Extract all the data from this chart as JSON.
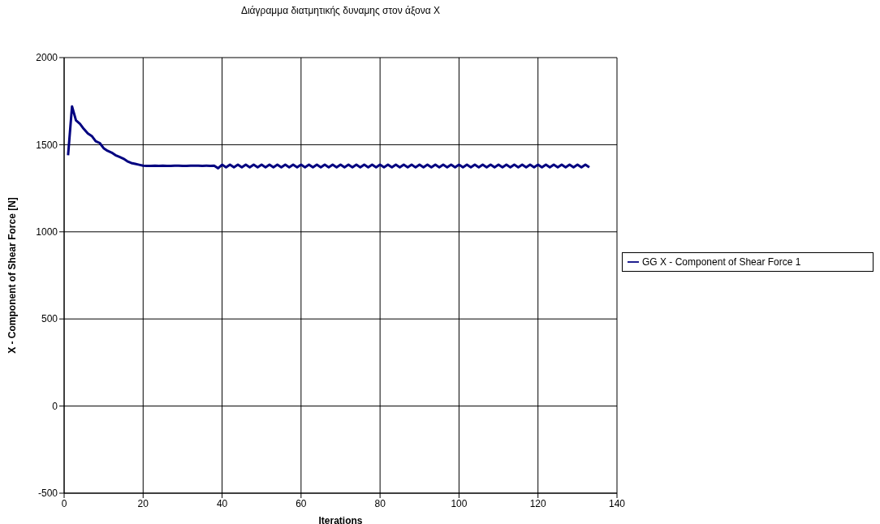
{
  "chart_data": {
    "type": "line",
    "title": "Διάγραμμα διατμητικής δυναμης στον άξονα X",
    "xlabel": "Iterations",
    "ylabel": "X - Component of Shear Force  [N]",
    "xlim": [
      0,
      140
    ],
    "xticks": [
      0,
      20,
      40,
      60,
      80,
      100,
      120,
      140
    ],
    "ylim": [
      -500,
      2000
    ],
    "yticks": [
      -500,
      0,
      500,
      1000,
      1500,
      2000
    ],
    "grid": true,
    "legend": "right",
    "marker": "none",
    "line_style": "solid",
    "x": [
      1,
      2,
      3,
      4,
      5,
      6,
      7,
      8,
      9,
      10,
      11,
      12,
      13,
      14,
      15,
      16,
      17,
      18,
      19,
      20,
      21,
      22,
      23,
      24,
      25,
      26,
      27,
      28,
      29,
      30,
      31,
      32,
      33,
      34,
      35,
      36,
      37,
      38,
      39,
      40,
      41,
      42,
      43,
      44,
      45,
      46,
      47,
      48,
      49,
      50,
      51,
      52,
      53,
      54,
      55,
      56,
      57,
      58,
      59,
      60,
      61,
      62,
      63,
      64,
      65,
      66,
      67,
      68,
      69,
      70,
      71,
      72,
      73,
      74,
      75,
      76,
      77,
      78,
      79,
      80,
      81,
      82,
      83,
      84,
      85,
      86,
      87,
      88,
      89,
      90,
      91,
      92,
      93,
      94,
      95,
      96,
      97,
      98,
      99,
      100,
      101,
      102,
      103,
      104,
      105,
      106,
      107,
      108,
      109,
      110,
      111,
      112,
      113,
      114,
      115,
      116,
      117,
      118,
      119,
      120,
      121,
      122,
      123,
      124,
      125,
      126,
      127,
      128,
      129,
      130,
      131,
      132,
      133
    ],
    "series": [
      {
        "name": "GG X - Component of Shear Force 1",
        "color": "#000080",
        "values": [
          1440,
          1720,
          1640,
          1620,
          1590,
          1565,
          1550,
          1520,
          1510,
          1480,
          1465,
          1455,
          1440,
          1430,
          1420,
          1405,
          1395,
          1390,
          1385,
          1380,
          1378,
          1378,
          1380,
          1378,
          1380,
          1378,
          1378,
          1380,
          1380,
          1378,
          1378,
          1380,
          1380,
          1380,
          1378,
          1380,
          1378,
          1380,
          1365,
          1385,
          1370,
          1385,
          1370,
          1385,
          1370,
          1385,
          1370,
          1385,
          1370,
          1385,
          1370,
          1385,
          1370,
          1385,
          1370,
          1385,
          1370,
          1385,
          1370,
          1385,
          1370,
          1385,
          1370,
          1385,
          1370,
          1385,
          1370,
          1385,
          1370,
          1385,
          1370,
          1385,
          1370,
          1385,
          1370,
          1385,
          1370,
          1385,
          1370,
          1385,
          1370,
          1385,
          1370,
          1385,
          1370,
          1385,
          1370,
          1385,
          1370,
          1385,
          1370,
          1385,
          1370,
          1385,
          1370,
          1385,
          1370,
          1385,
          1370,
          1385,
          1370,
          1385,
          1370,
          1385,
          1370,
          1385,
          1370,
          1385,
          1370,
          1385,
          1370,
          1385,
          1370,
          1385,
          1370,
          1385,
          1370,
          1385,
          1370,
          1385,
          1370,
          1385,
          1370,
          1385,
          1370,
          1385,
          1370,
          1385,
          1370,
          1385,
          1370,
          1385,
          1370
        ]
      }
    ]
  }
}
